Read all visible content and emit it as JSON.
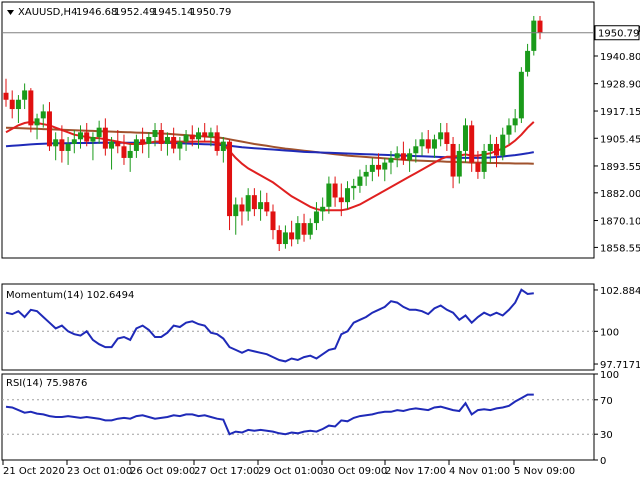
{
  "chart_data": [
    {
      "type": "candlestick",
      "header": {
        "symbol": "XAUUSD,H4",
        "ohlc": [
          "1946.68",
          "1952.49",
          "1945.14",
          "1950.79"
        ]
      },
      "ylim": [
        1854.0,
        1964.0
      ],
      "yticks": [
        "1952.70",
        "1940.80",
        "1928.90",
        "1917.15",
        "1905.45",
        "1893.55",
        "1882.00",
        "1870.10",
        "1858.55"
      ],
      "current_price": "1950.79",
      "colors": {
        "up": "#1a9a1a",
        "down": "#e01010",
        "ma_fast": "#e02020",
        "ma_mid": "#1f2ab8",
        "ma_slow": "#a0522d"
      },
      "candles": [
        [
          1925.0,
          1931.0,
          1919.0,
          1922.0
        ],
        [
          1922.0,
          1926.0,
          1914.0,
          1918.0
        ],
        [
          1918.0,
          1924.0,
          1912.0,
          1922.0
        ],
        [
          1922.0,
          1929.0,
          1918.0,
          1926.0
        ],
        [
          1926.0,
          1927.0,
          1908.0,
          1911.0
        ],
        [
          1911.0,
          1916.0,
          1905.0,
          1914.0
        ],
        [
          1914.0,
          1920.0,
          1910.0,
          1917.0
        ],
        [
          1917.0,
          1921.0,
          1900.0,
          1902.0
        ],
        [
          1902.0,
          1908.0,
          1896.0,
          1905.0
        ],
        [
          1905.0,
          1911.0,
          1895.0,
          1900.0
        ],
        [
          1900.0,
          1906.0,
          1894.0,
          1903.0
        ],
        [
          1903.0,
          1909.0,
          1899.0,
          1905.0
        ],
        [
          1905.0,
          1911.0,
          1901.0,
          1908.0
        ],
        [
          1908.0,
          1912.0,
          1902.0,
          1904.0
        ],
        [
          1904.0,
          1908.0,
          1896.0,
          1906.0
        ],
        [
          1906.0,
          1913.0,
          1903.0,
          1910.0
        ],
        [
          1910.0,
          1914.0,
          1898.0,
          1901.0
        ],
        [
          1901.0,
          1906.0,
          1892.0,
          1904.0
        ],
        [
          1904.0,
          1909.0,
          1899.0,
          1902.0
        ],
        [
          1902.0,
          1907.0,
          1894.0,
          1897.0
        ],
        [
          1897.0,
          1903.0,
          1891.0,
          1900.0
        ],
        [
          1900.0,
          1907.0,
          1897.0,
          1905.0
        ],
        [
          1905.0,
          1910.0,
          1899.0,
          1903.0
        ],
        [
          1903.0,
          1908.0,
          1897.0,
          1906.0
        ],
        [
          1906.0,
          1912.0,
          1902.0,
          1909.0
        ],
        [
          1909.0,
          1912.0,
          1900.0,
          1903.0
        ],
        [
          1903.0,
          1908.0,
          1898.0,
          1906.0
        ],
        [
          1906.0,
          1910.0,
          1899.0,
          1901.0
        ],
        [
          1901.0,
          1906.0,
          1896.0,
          1904.0
        ],
        [
          1904.0,
          1909.0,
          1900.0,
          1907.0
        ],
        [
          1907.0,
          1911.0,
          1902.0,
          1905.0
        ],
        [
          1905.0,
          1910.0,
          1901.0,
          1908.0
        ],
        [
          1908.0,
          1912.0,
          1904.0,
          1906.0
        ],
        [
          1906.0,
          1910.0,
          1902.0,
          1908.0
        ],
        [
          1908.0,
          1911.0,
          1898.0,
          1900.0
        ],
        [
          1900.0,
          1906.0,
          1895.0,
          1904.0
        ],
        [
          1904.0,
          1905.0,
          1866.0,
          1872.0
        ],
        [
          1872.0,
          1880.0,
          1864.0,
          1877.0
        ],
        [
          1877.0,
          1880.0,
          1868.0,
          1874.0
        ],
        [
          1874.0,
          1884.0,
          1870.0,
          1881.0
        ],
        [
          1881.0,
          1884.0,
          1872.0,
          1875.0
        ],
        [
          1875.0,
          1883.0,
          1870.0,
          1878.0
        ],
        [
          1878.0,
          1882.0,
          1872.0,
          1874.0
        ],
        [
          1874.0,
          1877.0,
          1862.0,
          1866.0
        ],
        [
          1866.0,
          1868.0,
          1857.0,
          1860.0
        ],
        [
          1860.0,
          1868.0,
          1858.0,
          1865.0
        ],
        [
          1865.0,
          1870.0,
          1859.0,
          1862.0
        ],
        [
          1862.0,
          1872.0,
          1860.0,
          1869.0
        ],
        [
          1869.0,
          1873.0,
          1861.0,
          1864.0
        ],
        [
          1864.0,
          1871.0,
          1862.0,
          1869.0
        ],
        [
          1869.0,
          1878.0,
          1866.0,
          1874.0
        ],
        [
          1874.0,
          1880.0,
          1870.0,
          1876.0
        ],
        [
          1876.0,
          1889.0,
          1873.0,
          1886.0
        ],
        [
          1886.0,
          1889.0,
          1876.0,
          1880.0
        ],
        [
          1880.0,
          1886.0,
          1872.0,
          1878.0
        ],
        [
          1878.0,
          1887.0,
          1875.0,
          1884.0
        ],
        [
          1884.0,
          1888.0,
          1879.0,
          1885.0
        ],
        [
          1885.0,
          1892.0,
          1882.0,
          1889.0
        ],
        [
          1889.0,
          1894.0,
          1885.0,
          1891.0
        ],
        [
          1891.0,
          1897.0,
          1887.0,
          1894.0
        ],
        [
          1894.0,
          1899.0,
          1889.0,
          1892.0
        ],
        [
          1892.0,
          1897.0,
          1887.0,
          1895.0
        ],
        [
          1895.0,
          1900.0,
          1890.0,
          1897.0
        ],
        [
          1897.0,
          1902.0,
          1893.0,
          1899.0
        ],
        [
          1899.0,
          1904.0,
          1894.0,
          1896.0
        ],
        [
          1896.0,
          1901.0,
          1891.0,
          1899.0
        ],
        [
          1899.0,
          1905.0,
          1895.0,
          1902.0
        ],
        [
          1902.0,
          1908.0,
          1898.0,
          1905.0
        ],
        [
          1905.0,
          1909.0,
          1899.0,
          1901.0
        ],
        [
          1901.0,
          1907.0,
          1897.0,
          1905.0
        ],
        [
          1905.0,
          1912.0,
          1902.0,
          1908.0
        ],
        [
          1908.0,
          1912.0,
          1900.0,
          1903.0
        ],
        [
          1903.0,
          1906.0,
          1884.0,
          1889.0
        ],
        [
          1889.0,
          1903.0,
          1886.0,
          1900.0
        ],
        [
          1900.0,
          1914.0,
          1895.0,
          1911.0
        ],
        [
          1911.0,
          1913.0,
          1891.0,
          1895.0
        ],
        [
          1895.0,
          1900.0,
          1888.0,
          1891.0
        ],
        [
          1891.0,
          1903.0,
          1888.0,
          1900.0
        ],
        [
          1900.0,
          1907.0,
          1895.0,
          1903.0
        ],
        [
          1903.0,
          1906.0,
          1893.0,
          1898.0
        ],
        [
          1898.0,
          1910.0,
          1896.0,
          1907.0
        ],
        [
          1907.0,
          1914.0,
          1903.0,
          1911.0
        ],
        [
          1911.0,
          1918.0,
          1908.0,
          1914.0
        ],
        [
          1914.0,
          1936.0,
          1912.0,
          1934.0
        ],
        [
          1934.0,
          1946.0,
          1932.0,
          1943.0
        ],
        [
          1943.0,
          1958.0,
          1941.0,
          1956.0
        ],
        [
          1956.0,
          1958.0,
          1948.0,
          1950.79
        ]
      ],
      "ma_fast": [
        1908.0,
        1909.5,
        1911.0,
        1912.0,
        1912.5,
        1912.0,
        1911.5,
        1911.0,
        1910.0,
        1909.0,
        1908.0,
        1907.0,
        1906.5,
        1906.0,
        1905.5,
        1905.5,
        1905.0,
        1904.5,
        1904.0,
        1903.5,
        1903.0,
        1903.0,
        1903.0,
        1903.5,
        1904.0,
        1904.0,
        1904.0,
        1904.0,
        1904.0,
        1904.0,
        1904.0,
        1904.0,
        1904.0,
        1904.0,
        1903.5,
        1903.0,
        1900.0,
        1897.0,
        1894.5,
        1892.5,
        1891.0,
        1889.5,
        1888.0,
        1886.5,
        1884.5,
        1882.5,
        1880.5,
        1879.0,
        1877.5,
        1876.0,
        1875.0,
        1874.5,
        1874.5,
        1874.5,
        1874.5,
        1875.0,
        1876.0,
        1877.0,
        1878.5,
        1880.0,
        1881.5,
        1883.0,
        1884.5,
        1886.0,
        1887.5,
        1889.0,
        1890.5,
        1892.0,
        1893.5,
        1895.0,
        1896.5,
        1897.5,
        1897.5,
        1898.0,
        1898.5,
        1898.0,
        1898.0,
        1898.5,
        1899.0,
        1900.0,
        1901.0,
        1902.5,
        1904.5,
        1907.0,
        1910.0,
        1912.5
      ],
      "ma_mid": [
        1902.0,
        1902.2,
        1902.4,
        1902.6,
        1902.8,
        1903.0,
        1903.1,
        1903.2,
        1903.3,
        1903.3,
        1903.3,
        1903.4,
        1903.4,
        1903.4,
        1903.4,
        1903.5,
        1903.5,
        1903.5,
        1903.5,
        1903.5,
        1903.5,
        1903.5,
        1903.5,
        1903.5,
        1903.5,
        1903.5,
        1903.5,
        1903.4,
        1903.3,
        1903.2,
        1903.1,
        1903.0,
        1902.9,
        1902.8,
        1902.7,
        1902.5,
        1902.2,
        1901.9,
        1901.6,
        1901.4,
        1901.2,
        1901.0,
        1900.8,
        1900.6,
        1900.4,
        1900.2,
        1900.0,
        1899.8,
        1899.6,
        1899.5,
        1899.4,
        1899.3,
        1899.2,
        1899.1,
        1899.0,
        1898.9,
        1898.8,
        1898.7,
        1898.6,
        1898.5,
        1898.4,
        1898.3,
        1898.2,
        1898.1,
        1898.0,
        1897.9,
        1897.8,
        1897.7,
        1897.6,
        1897.5,
        1897.4,
        1897.3,
        1897.2,
        1897.1,
        1897.0,
        1897.0,
        1897.0,
        1897.1,
        1897.2,
        1897.4,
        1897.6,
        1897.9,
        1898.2,
        1898.6,
        1899.0,
        1899.5
      ],
      "ma_slow": [
        1910.0,
        1909.9,
        1909.8,
        1909.7,
        1909.6,
        1909.5,
        1909.4,
        1909.3,
        1909.2,
        1909.1,
        1909.0,
        1908.9,
        1908.8,
        1908.7,
        1908.6,
        1908.5,
        1908.4,
        1908.3,
        1908.2,
        1908.1,
        1908.0,
        1907.9,
        1907.8,
        1907.7,
        1907.6,
        1907.5,
        1907.4,
        1907.2,
        1907.0,
        1906.8,
        1906.6,
        1906.4,
        1906.2,
        1906.0,
        1905.8,
        1905.5,
        1905.0,
        1904.5,
        1904.0,
        1903.5,
        1903.0,
        1902.6,
        1902.2,
        1901.8,
        1901.4,
        1901.0,
        1900.7,
        1900.4,
        1900.1,
        1899.8,
        1899.5,
        1899.2,
        1898.9,
        1898.6,
        1898.3,
        1898.0,
        1897.8,
        1897.6,
        1897.4,
        1897.2,
        1897.0,
        1896.8,
        1896.6,
        1896.4,
        1896.2,
        1896.0,
        1895.9,
        1895.8,
        1895.7,
        1895.6,
        1895.5,
        1895.4,
        1895.3,
        1895.2,
        1895.1,
        1895.0,
        1895.0,
        1894.9,
        1894.8,
        1894.8,
        1894.7,
        1894.7,
        1894.6,
        1894.6,
        1894.6,
        1894.5
      ]
    },
    {
      "type": "line",
      "title": "Momentum(14) 102.6494",
      "ylim": [
        97.3,
        103.3
      ],
      "yticks": [
        "102.8843",
        "100",
        "97.7171"
      ],
      "reference_level": 100,
      "color": "#1f2ab8",
      "values": [
        101.3,
        101.2,
        101.4,
        101.0,
        101.5,
        101.4,
        101.0,
        100.6,
        100.2,
        100.4,
        100.0,
        99.8,
        99.7,
        100.0,
        99.4,
        99.1,
        98.9,
        98.9,
        99.5,
        99.6,
        99.4,
        100.2,
        100.4,
        100.1,
        99.6,
        99.6,
        99.9,
        100.4,
        100.3,
        100.6,
        100.7,
        100.5,
        100.4,
        99.9,
        99.8,
        99.5,
        98.9,
        98.7,
        98.5,
        98.7,
        98.6,
        98.5,
        98.4,
        98.2,
        98.0,
        97.9,
        98.1,
        98.0,
        98.2,
        98.3,
        98.1,
        98.4,
        98.7,
        98.8,
        99.8,
        100.0,
        100.6,
        100.8,
        101.0,
        101.3,
        101.5,
        101.7,
        102.1,
        102.0,
        101.7,
        101.5,
        101.5,
        101.4,
        101.2,
        101.6,
        101.8,
        101.5,
        101.3,
        100.8,
        101.1,
        100.6,
        101.0,
        101.3,
        101.1,
        101.3,
        101.1,
        101.5,
        102.0,
        102.9,
        102.6,
        102.65
      ]
    },
    {
      "type": "line",
      "title": "RSI(14) 75.9876",
      "ylim": [
        0,
        100
      ],
      "yticks": [
        "100",
        "70",
        "30",
        "0"
      ],
      "reference_levels": [
        70,
        30
      ],
      "color": "#1f2ab8",
      "values": [
        62,
        61,
        58,
        55,
        56,
        54,
        53,
        51,
        50,
        50,
        51,
        50,
        49,
        50,
        49,
        48,
        46,
        46,
        48,
        49,
        48,
        51,
        52,
        50,
        48,
        49,
        50,
        52,
        51,
        53,
        53,
        51,
        52,
        50,
        48,
        47,
        30,
        33,
        32,
        35,
        34,
        35,
        34,
        33,
        31,
        30,
        32,
        31,
        33,
        34,
        33,
        36,
        40,
        39,
        46,
        45,
        49,
        51,
        52,
        53,
        55,
        56,
        56,
        58,
        57,
        59,
        60,
        59,
        58,
        61,
        62,
        60,
        58,
        57,
        66,
        53,
        58,
        59,
        58,
        60,
        61,
        63,
        68,
        72,
        76,
        76
      ]
    }
  ],
  "x_axis": {
    "labels": [
      "21 Oct 2020",
      "23 Oct 01:00",
      "26 Oct 09:00",
      "27 Oct 17:00",
      "29 Oct 01:00",
      "30 Oct 09:00",
      "2 Nov 17:00",
      "4 Nov 01:00",
      "5 Nov 09:00"
    ]
  }
}
